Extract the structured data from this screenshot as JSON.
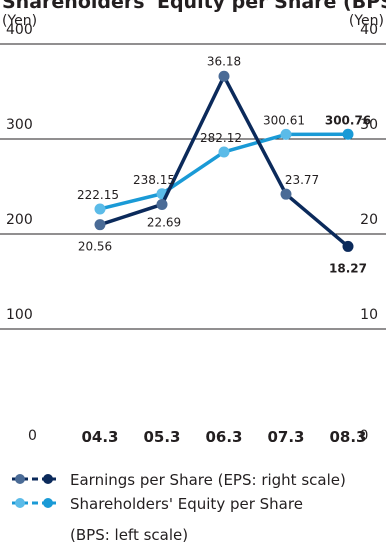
{
  "chart_data": {
    "type": "line",
    "title": "Shareholders' Equity per Share (BPS)",
    "left_unit": "(Yen)",
    "right_unit": "(Yen)",
    "categories": [
      "04.3",
      "05.3",
      "06.3",
      "07.3",
      "08.3"
    ],
    "left_axis": {
      "ylim": [
        0,
        400
      ],
      "ticks": [
        "0",
        "100",
        "200",
        "300",
        "400"
      ],
      "tick_values": [
        0,
        100,
        200,
        300,
        400
      ]
    },
    "right_axis": {
      "ylim": [
        0,
        40
      ],
      "ticks": [
        "0",
        "10",
        "20",
        "30",
        "40"
      ],
      "tick_values": [
        0,
        10,
        20,
        30,
        40
      ]
    },
    "grid": true,
    "series": [
      {
        "name": "Earnings per Share (EPS: right scale)",
        "axis": "right",
        "values": [
          20.56,
          22.69,
          36.18,
          23.77,
          18.27
        ],
        "labels": [
          "20.56",
          "22.69",
          "36.18",
          "23.77",
          "18.27"
        ],
        "line_color": "#0b2a5b",
        "marker_color": "#4a6b96",
        "last_marker_color": "#0b2a5b"
      },
      {
        "name": "Shareholders' Equity per Share",
        "name_line2": "(BPS: left scale)",
        "axis": "left",
        "values": [
          222.15,
          238.15,
          282.12,
          300.61,
          300.76
        ],
        "labels": [
          "222.15",
          "238.15",
          "282.12",
          "300.61",
          "300.76"
        ],
        "line_color": "#1a9ad6",
        "marker_color": "#5bbbe8",
        "last_marker_color": "#1a9ad6"
      }
    ]
  }
}
